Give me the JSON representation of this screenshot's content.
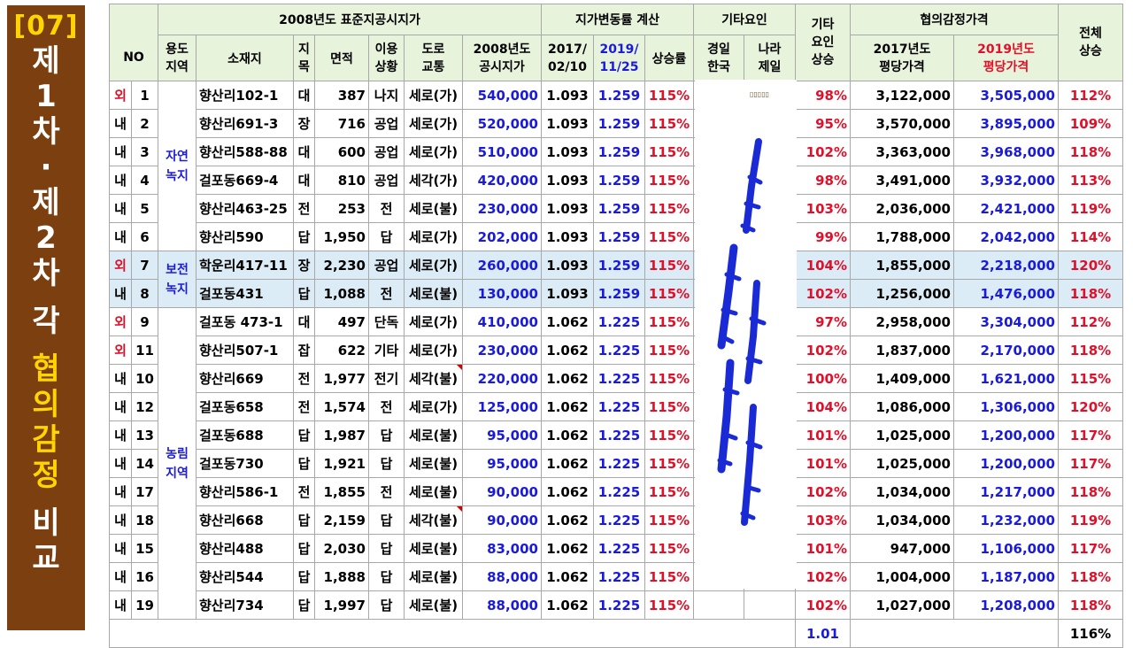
{
  "side": {
    "num": "[07]",
    "chars": [
      "제",
      "1",
      "차",
      "·",
      "제",
      "2",
      "차",
      "",
      "각",
      "",
      "협",
      "의",
      "감",
      "정",
      "",
      "비",
      "교"
    ]
  },
  "header": {
    "group1": "2008년도 표준지공시지가",
    "group2": "지가변동률 계산",
    "group3": "기타요인",
    "group4_line1": "기타",
    "group4_line2": "요인",
    "group4_line3": "상승",
    "group5": "협의감정가격",
    "group6_line1": "전체",
    "group6_line2": "상승",
    "no": "NO",
    "zone_l1": "용도",
    "zone_l2": "지역",
    "addr": "소재지",
    "jm_l1": "지",
    "jm_l2": "목",
    "area": "면적",
    "use_l1": "이용",
    "use_l2": "상황",
    "road_l1": "도로",
    "road_l2": "교통",
    "price_l1": "2008년도",
    "price_l2": "공시지가",
    "d1_l1": "2017/",
    "d1_l2": "02/10",
    "d2_l1": "2019/",
    "d2_l2": "11/25",
    "rate": "상승률",
    "o1_l1": "경일",
    "o1_l2": "한국",
    "o2_l1": "나라",
    "o2_l2": "제일",
    "p17_l1": "2017년도",
    "p17_l2": "평당가격",
    "p19_l1": "2019년도",
    "p19_l2": "평당가격"
  },
  "zones": {
    "natural": "자연 녹지",
    "preserve": "보전 녹지",
    "forest": "농림 지역"
  },
  "rows": [
    {
      "io": "외",
      "no": "1",
      "addr": "향산리102-1",
      "jm": "대",
      "area": "387",
      "use": "나지",
      "road": "세로(가)",
      "price": "540,000",
      "r1": "1.093",
      "r2": "1.259",
      "rate": "115%",
      "oth": "98%",
      "p17": "3,122,000",
      "p19": "3,505,000",
      "tot": "112%"
    },
    {
      "io": "내",
      "no": "2",
      "addr": "향산리691-3",
      "jm": "장",
      "area": "716",
      "use": "공업",
      "road": "세로(가)",
      "price": "520,000",
      "r1": "1.093",
      "r2": "1.259",
      "rate": "115%",
      "oth": "95%",
      "p17": "3,570,000",
      "p19": "3,895,000",
      "tot": "109%"
    },
    {
      "io": "내",
      "no": "3",
      "addr": "향산리588-88",
      "jm": "대",
      "area": "600",
      "use": "공업",
      "road": "세로(가)",
      "price": "510,000",
      "r1": "1.093",
      "r2": "1.259",
      "rate": "115%",
      "oth": "102%",
      "p17": "3,363,000",
      "p19": "3,968,000",
      "tot": "118%"
    },
    {
      "io": "내",
      "no": "4",
      "addr": "걸포동669-4",
      "jm": "대",
      "area": "810",
      "use": "공업",
      "road": "세각(가)",
      "price": "420,000",
      "r1": "1.093",
      "r2": "1.259",
      "rate": "115%",
      "oth": "98%",
      "p17": "3,491,000",
      "p19": "3,932,000",
      "tot": "113%"
    },
    {
      "io": "내",
      "no": "5",
      "addr": "향산리463-25",
      "jm": "전",
      "area": "253",
      "use": "전",
      "road": "세로(불)",
      "price": "230,000",
      "r1": "1.093",
      "r2": "1.259",
      "rate": "115%",
      "oth": "103%",
      "p17": "2,036,000",
      "p19": "2,421,000",
      "tot": "119%"
    },
    {
      "io": "내",
      "no": "6",
      "addr": "향산리590",
      "jm": "답",
      "area": "1,950",
      "use": "답",
      "road": "세로(가)",
      "price": "202,000",
      "r1": "1.093",
      "r2": "1.259",
      "rate": "115%",
      "oth": "99%",
      "p17": "1,788,000",
      "p19": "2,042,000",
      "tot": "114%"
    },
    {
      "io": "외",
      "no": "7",
      "addr": "학운리417-11",
      "jm": "장",
      "area": "2,230",
      "use": "공업",
      "road": "세로(가)",
      "price": "260,000",
      "r1": "1.093",
      "r2": "1.259",
      "rate": "115%",
      "oth": "104%",
      "p17": "1,855,000",
      "p19": "2,218,000",
      "tot": "120%"
    },
    {
      "io": "내",
      "no": "8",
      "addr": "걸포동431",
      "jm": "답",
      "area": "1,088",
      "use": "전",
      "road": "세로(불)",
      "price": "130,000",
      "r1": "1.093",
      "r2": "1.259",
      "rate": "115%",
      "oth": "102%",
      "p17": "1,256,000",
      "p19": "1,476,000",
      "tot": "118%"
    },
    {
      "io": "외",
      "no": "9",
      "addr": "걸포동 473-1",
      "jm": "대",
      "area": "497",
      "use": "단독",
      "road": "세로(가)",
      "price": "410,000",
      "r1": "1.062",
      "r2": "1.225",
      "rate": "115%",
      "oth": "97%",
      "p17": "2,958,000",
      "p19": "3,304,000",
      "tot": "112%"
    },
    {
      "io": "외",
      "no": "11",
      "addr": "향산리507-1",
      "jm": "잡",
      "area": "622",
      "use": "기타",
      "road": "세로(가)",
      "price": "230,000",
      "r1": "1.062",
      "r2": "1.225",
      "rate": "115%",
      "oth": "102%",
      "p17": "1,837,000",
      "p19": "2,170,000",
      "tot": "118%"
    },
    {
      "io": "내",
      "no": "10",
      "addr": "향산리669",
      "jm": "전",
      "area": "1,977",
      "use": "전기",
      "road": "세각(불)",
      "price": "220,000",
      "r1": "1.062",
      "r2": "1.225",
      "rate": "115%",
      "oth": "100%",
      "p17": "1,409,000",
      "p19": "1,621,000",
      "tot": "115%"
    },
    {
      "io": "내",
      "no": "12",
      "addr": "걸포동658",
      "jm": "전",
      "area": "1,574",
      "use": "전",
      "road": "세로(가)",
      "price": "125,000",
      "r1": "1.062",
      "r2": "1.225",
      "rate": "115%",
      "oth": "104%",
      "p17": "1,086,000",
      "p19": "1,306,000",
      "tot": "120%"
    },
    {
      "io": "내",
      "no": "13",
      "addr": "걸포동688",
      "jm": "답",
      "area": "1,987",
      "use": "답",
      "road": "세로(불)",
      "price": "95,000",
      "r1": "1.062",
      "r2": "1.225",
      "rate": "115%",
      "oth": "101%",
      "p17": "1,025,000",
      "p19": "1,200,000",
      "tot": "117%"
    },
    {
      "io": "내",
      "no": "14",
      "addr": "걸포동730",
      "jm": "답",
      "area": "1,921",
      "use": "답",
      "road": "세로(불)",
      "price": "95,000",
      "r1": "1.062",
      "r2": "1.225",
      "rate": "115%",
      "oth": "101%",
      "p17": "1,025,000",
      "p19": "1,200,000",
      "tot": "117%"
    },
    {
      "io": "내",
      "no": "17",
      "addr": "향산리586-1",
      "jm": "전",
      "area": "1,855",
      "use": "전",
      "road": "세로(불)",
      "price": "90,000",
      "r1": "1.062",
      "r2": "1.225",
      "rate": "115%",
      "oth": "102%",
      "p17": "1,034,000",
      "p19": "1,217,000",
      "tot": "118%"
    },
    {
      "io": "내",
      "no": "18",
      "addr": "향산리668",
      "jm": "답",
      "area": "2,159",
      "use": "답",
      "road": "세각(불)",
      "price": "90,000",
      "r1": "1.062",
      "r2": "1.225",
      "rate": "115%",
      "oth": "103%",
      "p17": "1,034,000",
      "p19": "1,232,000",
      "tot": "119%"
    },
    {
      "io": "내",
      "no": "15",
      "addr": "향산리488",
      "jm": "답",
      "area": "2,030",
      "use": "답",
      "road": "세로(불)",
      "price": "83,000",
      "r1": "1.062",
      "r2": "1.225",
      "rate": "115%",
      "oth": "101%",
      "p17": "947,000",
      "p19": "1,106,000",
      "tot": "117%"
    },
    {
      "io": "내",
      "no": "16",
      "addr": "향산리544",
      "jm": "답",
      "area": "1,888",
      "use": "답",
      "road": "세로(불)",
      "price": "88,000",
      "r1": "1.062",
      "r2": "1.225",
      "rate": "115%",
      "oth": "102%",
      "p17": "1,004,000",
      "p19": "1,187,000",
      "tot": "118%"
    },
    {
      "io": "내",
      "no": "19",
      "addr": "향산리734",
      "jm": "답",
      "area": "1,997",
      "use": "답",
      "road": "세로(불)",
      "price": "88,000",
      "r1": "1.062",
      "r2": "1.225",
      "rate": "115%",
      "oth": "102%",
      "p17": "1,027,000",
      "p19": "1,208,000",
      "tot": "118%"
    }
  ],
  "totals": {
    "other_avg": "1.01",
    "overall": "116%"
  },
  "colors": {
    "sidebar": "#7b3f10",
    "sidebar_accent": "#ffd400",
    "header_bg": "#e8f3dc",
    "highlight_bg": "#dcecf6",
    "blue": "#1a1adb",
    "red": "#e0102a"
  }
}
